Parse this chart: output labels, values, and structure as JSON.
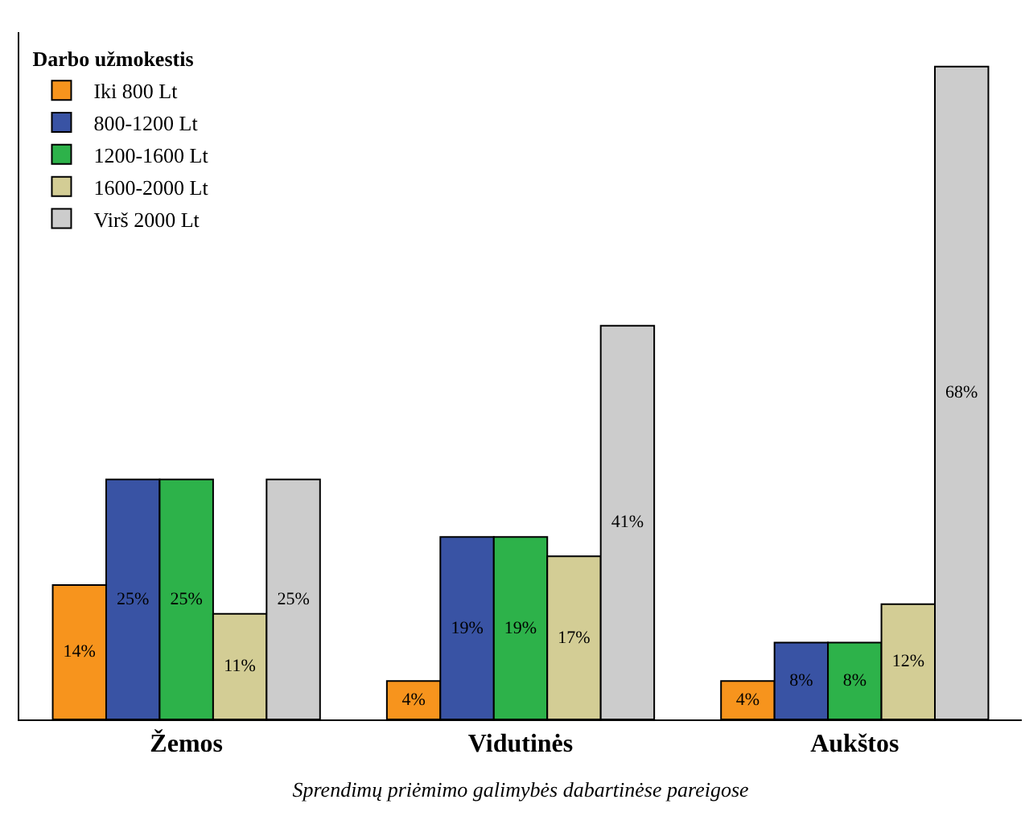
{
  "chart_data": {
    "type": "bar",
    "xlabel": "Sprendimų priėmimo galimybės dabartinėse pareigose",
    "legend_title": "Darbo užmokestis",
    "legend": "top left",
    "tick_labels": "x",
    "categories": [
      "Žemos",
      "Vidutinės",
      "Aukštos"
    ],
    "series": [
      {
        "name": "Iki 800 Lt",
        "color": "#f7941d",
        "values": [
          14,
          4,
          4
        ],
        "value_labels": [
          "14%",
          "4%",
          "4%"
        ]
      },
      {
        "name": "800-1200 Lt",
        "color": "#3953a4",
        "values": [
          25,
          19,
          8
        ],
        "value_labels": [
          "25%",
          "19%",
          "8%"
        ]
      },
      {
        "name": "1200-1600 Lt",
        "color": "#2db24a",
        "values": [
          25,
          19,
          8
        ],
        "value_labels": [
          "25%",
          "19%",
          "8%"
        ]
      },
      {
        "name": "1600-2000 Lt",
        "color": "#d3cd95",
        "values": [
          11,
          17,
          12
        ],
        "value_labels": [
          "11%",
          "17%",
          "12%"
        ]
      },
      {
        "name": "Virš 2000 Lt",
        "color": "#cccccc",
        "values": [
          25,
          41,
          68
        ],
        "value_labels": [
          "25%",
          "41%",
          "68%"
        ]
      }
    ]
  }
}
